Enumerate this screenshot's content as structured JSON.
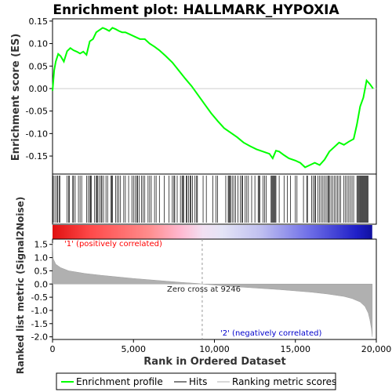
{
  "chart_data": {
    "type": "line",
    "title": "Enrichment plot: HALLMARK_HYPOXIA",
    "top_panel": {
      "ylabel": "Enrichment score (ES)",
      "ylim": [
        -0.19,
        0.155
      ],
      "yticks": [
        0.15,
        0.1,
        0.05,
        0.0,
        -0.05,
        -0.1,
        -0.15
      ],
      "ytick_labels": [
        "0.15",
        "0.10",
        "0.05",
        "0.00",
        "-0.05",
        "-0.10",
        "-0.15"
      ],
      "series": [
        {
          "name": "Enrichment profile",
          "color": "#00ff00",
          "x": [
            0,
            100,
            200,
            350,
            500,
            700,
            900,
            1100,
            1300,
            1500,
            1700,
            1900,
            2100,
            2300,
            2500,
            2700,
            2900,
            3100,
            3300,
            3500,
            3700,
            3900,
            4100,
            4300,
            4500,
            4800,
            5100,
            5400,
            5700,
            6000,
            6300,
            6600,
            7000,
            7400,
            7800,
            8200,
            8600,
            9000,
            9400,
            9800,
            10200,
            10600,
            11000,
            11400,
            11800,
            12200,
            12600,
            13000,
            13400,
            13600,
            13800,
            14000,
            14300,
            14600,
            15000,
            15300,
            15600,
            15900,
            16200,
            16500,
            16800,
            17100,
            17400,
            17700,
            18000,
            18300,
            18600,
            18800,
            19000,
            19200,
            19400,
            19600,
            19800
          ],
          "values": [
            -0.005,
            0.04,
            0.06,
            0.077,
            0.072,
            0.06,
            0.083,
            0.09,
            0.085,
            0.082,
            0.078,
            0.082,
            0.075,
            0.105,
            0.11,
            0.125,
            0.13,
            0.135,
            0.132,
            0.128,
            0.135,
            0.132,
            0.128,
            0.125,
            0.125,
            0.12,
            0.115,
            0.11,
            0.11,
            0.1,
            0.093,
            0.085,
            0.072,
            0.058,
            0.04,
            0.022,
            0.005,
            -0.015,
            -0.035,
            -0.055,
            -0.072,
            -0.088,
            -0.098,
            -0.108,
            -0.12,
            -0.128,
            -0.135,
            -0.14,
            -0.145,
            -0.155,
            -0.138,
            -0.14,
            -0.148,
            -0.155,
            -0.16,
            -0.165,
            -0.175,
            -0.17,
            -0.165,
            -0.17,
            -0.158,
            -0.14,
            -0.13,
            -0.12,
            -0.125,
            -0.118,
            -0.112,
            -0.08,
            -0.04,
            -0.02,
            0.018,
            0.01,
            0.0
          ]
        }
      ]
    },
    "hits_panel": {
      "name": "Hits",
      "hit_ranks": [
        50,
        150,
        250,
        320,
        400,
        450,
        900,
        1000,
        1050,
        1250,
        1300,
        1400,
        1600,
        1700,
        1800,
        2100,
        2200,
        2300,
        2350,
        2400,
        2600,
        2700,
        2750,
        2800,
        2900,
        3000,
        3050,
        3150,
        3300,
        3400,
        3600,
        3650,
        3700,
        3900,
        4000,
        4100,
        4200,
        4400,
        4500,
        4700,
        4900,
        5000,
        5100,
        5200,
        5250,
        5350,
        5500,
        5600,
        5700,
        5900,
        6000,
        6100,
        6300,
        6400,
        6600,
        6900,
        7200,
        7400,
        7500,
        7550,
        7700,
        7900,
        8000,
        8050,
        8100,
        8250,
        8300,
        8400,
        8500,
        8550,
        8650,
        8800,
        8900,
        8950,
        9300,
        9500,
        9900,
        10100,
        10200,
        10700,
        10850,
        10900,
        10950,
        11000,
        11100,
        11200,
        11300,
        11450,
        11600,
        11700,
        11750,
        11900,
        12000,
        12100,
        12300,
        12500,
        12700,
        12750,
        12800,
        13000,
        13100,
        13200,
        13500,
        13550,
        13600,
        13650,
        13700,
        13750,
        13800,
        14000,
        14300,
        14500,
        14700,
        15000,
        15100,
        15500,
        15700,
        15750,
        16000,
        16100,
        16200,
        16250,
        16400,
        16500,
        16600,
        16700,
        16800,
        16900,
        17000,
        17050,
        17100,
        17200,
        17300,
        17400,
        17500,
        17600,
        17700,
        17800,
        18000,
        18100,
        18200,
        18300,
        18400,
        18500,
        18600,
        18800,
        18850,
        18900,
        18950,
        19000,
        19050,
        19100,
        19150,
        19200,
        19250,
        19300,
        19350,
        19400,
        19450,
        19500
      ]
    },
    "bottom_panel": {
      "ylabel": "Ranked list metric (Signal2Noise)",
      "ylim": [
        -2.1,
        1.7
      ],
      "yticks": [
        1.5,
        1.0,
        0.5,
        0.0,
        -0.5,
        -1.0,
        -1.5,
        -2.0
      ],
      "ytick_labels": [
        "1.5",
        "1.0",
        "0.5",
        "0.0",
        "-0.5",
        "-1.0",
        "-1.5",
        "-2.0"
      ],
      "x": [
        0,
        50,
        200,
        500,
        1000,
        2000,
        3000,
        4000,
        5000,
        6000,
        7000,
        8000,
        9000,
        9246,
        10000,
        11000,
        12000,
        13000,
        14000,
        15000,
        16000,
        17000,
        18000,
        18500,
        19000,
        19300,
        19500,
        19600,
        19700,
        19750
      ],
      "values": [
        1.55,
        0.95,
        0.75,
        0.62,
        0.5,
        0.4,
        0.33,
        0.27,
        0.21,
        0.16,
        0.11,
        0.06,
        0.02,
        0.0,
        -0.04,
        -0.09,
        -0.13,
        -0.17,
        -0.21,
        -0.26,
        -0.31,
        -0.38,
        -0.47,
        -0.55,
        -0.68,
        -0.85,
        -1.1,
        -1.35,
        -1.7,
        -2.0
      ],
      "color": "#b0b0b0"
    },
    "xlabel": "Rank in Ordered Dataset",
    "xlim": [
      0,
      20000
    ],
    "xticks": [
      0,
      5000,
      10000,
      15000,
      20000
    ],
    "xtick_labels": [
      "0",
      "5,000",
      "10,000",
      "15,000",
      "20,000"
    ],
    "n_genes": 19750,
    "zero_cross": 9246,
    "annotations": {
      "zero_cross_text": "Zero cross at 9246",
      "positive_text": "'1' (positively correlated)",
      "negative_text": "'2' (negatively correlated)",
      "positive_color": "#ff0000",
      "negative_color": "#0000cc"
    },
    "legend": {
      "placement": "bottom",
      "items": [
        {
          "label": "Enrichment profile",
          "color": "#00ff00"
        },
        {
          "label": "Hits",
          "color": "#000000"
        },
        {
          "label": "Ranking metric scores",
          "color": "#b0b0b0"
        }
      ]
    },
    "grid": false
  }
}
